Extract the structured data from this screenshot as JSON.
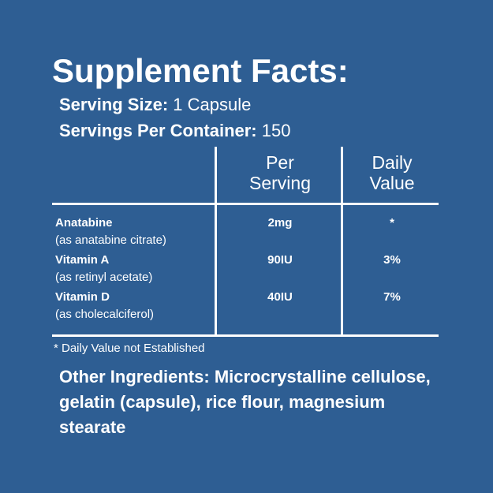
{
  "title": "Supplement Facts:",
  "serving_size": {
    "label": "Serving Size:",
    "value": "1 Capsule"
  },
  "servings_per_container": {
    "label": "Servings Per Container:",
    "value": "150"
  },
  "table": {
    "headers": [
      [
        "Per",
        "Serving"
      ],
      [
        "Daily",
        "Value"
      ]
    ],
    "rows": [
      {
        "name": "Anatabine",
        "note": "(as anatabine citrate)",
        "amount": "2mg",
        "daily_value": "*"
      },
      {
        "name": "Vitamin A",
        "note": "(as retinyl acetate)",
        "amount": "90IU",
        "daily_value": "3%"
      },
      {
        "name": "Vitamin D",
        "note": "(as cholecalciferol)",
        "amount": "40IU",
        "daily_value": "7%"
      }
    ]
  },
  "footnote": "* Daily Value not Established",
  "other_ingredients": {
    "label": "Other Ingredients:",
    "text": "Microcrystalline cellulose, gelatin (capsule), rice flour, magnesium stearate"
  }
}
